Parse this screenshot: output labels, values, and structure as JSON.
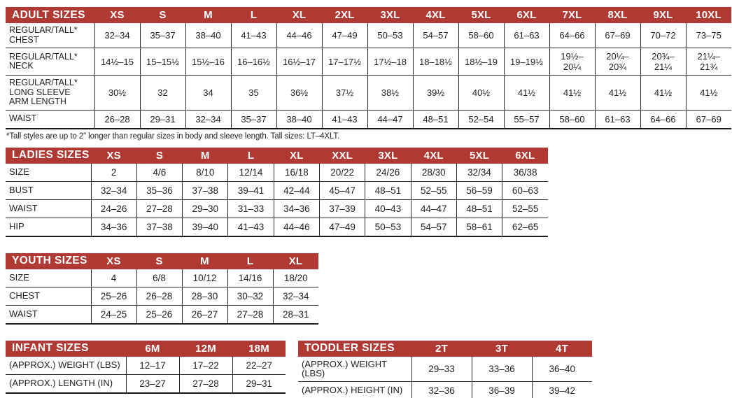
{
  "colors": {
    "header_background": "#b03a33",
    "header_text": "#ffffff",
    "body_text": "#231f20",
    "border": "#2a2a2a"
  },
  "footnote": "*Tall styles are up to 2\" longer than regular sizes in body and sleeve length. Tall sizes: LT–4XLT.",
  "tables": [
    {
      "id": "adult",
      "title": "ADULT SIZES",
      "columns": [
        "XS",
        "S",
        "M",
        "L",
        "XL",
        "2XL",
        "3XL",
        "4XL",
        "5XL",
        "6XL",
        "7XL",
        "8XL",
        "9XL",
        "10XL"
      ],
      "rows": [
        {
          "label": "REGULAR/TALL*\nCHEST",
          "values": [
            "32–34",
            "35–37",
            "38–40",
            "41–43",
            "44–46",
            "47–49",
            "50–53",
            "54–57",
            "58–60",
            "61–63",
            "64–66",
            "67–69",
            "70–72",
            "73–75"
          ]
        },
        {
          "label": "REGULAR/TALL*\nNECK",
          "values": [
            "14½–15",
            "15–15½",
            "15½–16",
            "16–16½",
            "16½–17",
            "17–17½",
            "17½–18",
            "18–18½",
            "18½–19",
            "19–19½",
            "19½–\n20¼",
            "20¼–\n20¾",
            "20¾–\n21¼",
            "21¼–\n21¾"
          ]
        },
        {
          "label": "REGULAR/TALL*\nLONG SLEEVE\nARM LENGTH",
          "values": [
            "30½",
            "32",
            "34",
            "35",
            "36½",
            "37½",
            "38½",
            "39½",
            "40½",
            "41½",
            "41½",
            "41½",
            "41½",
            "41½"
          ]
        },
        {
          "label": "WAIST",
          "values": [
            "26–28",
            "29–31",
            "32–34",
            "35–37",
            "38–40",
            "41–43",
            "44–47",
            "48–51",
            "52–54",
            "55–57",
            "58–60",
            "61–63",
            "64–66",
            "67–69"
          ]
        }
      ]
    },
    {
      "id": "ladies",
      "title": "LADIES SIZES",
      "columns": [
        "XS",
        "S",
        "M",
        "L",
        "XL",
        "XXL",
        "3XL",
        "4XL",
        "5XL",
        "6XL"
      ],
      "rows": [
        {
          "label": "SIZE",
          "values": [
            "2",
            "4/6",
            "8/10",
            "12/14",
            "16/18",
            "20/22",
            "24/26",
            "28/30",
            "32/34",
            "36/38"
          ]
        },
        {
          "label": "BUST",
          "values": [
            "32–34",
            "35–36",
            "37–38",
            "39–41",
            "42–44",
            "45–47",
            "48–51",
            "52–55",
            "56–59",
            "60–63"
          ]
        },
        {
          "label": "WAIST",
          "values": [
            "24–26",
            "27–28",
            "29–30",
            "31–33",
            "34–36",
            "37–39",
            "40–43",
            "44–47",
            "48–51",
            "52–55"
          ]
        },
        {
          "label": "HIP",
          "values": [
            "34–36",
            "37–38",
            "39–40",
            "41–43",
            "44–46",
            "47–49",
            "50–53",
            "54–57",
            "58–61",
            "62–65"
          ]
        }
      ]
    },
    {
      "id": "youth",
      "title": "YOUTH SIZES",
      "columns": [
        "XS",
        "S",
        "M",
        "L",
        "XL"
      ],
      "rows": [
        {
          "label": "SIZE",
          "values": [
            "4",
            "6/8",
            "10/12",
            "14/16",
            "18/20"
          ]
        },
        {
          "label": "CHEST",
          "values": [
            "25–26",
            "26–28",
            "28–30",
            "30–32",
            "32–34"
          ]
        },
        {
          "label": "WAIST",
          "values": [
            "24–25",
            "25–26",
            "26–27",
            "27–28",
            "28–31"
          ]
        }
      ]
    },
    {
      "id": "infant",
      "title": "INFANT SIZES",
      "columns": [
        "6M",
        "12M",
        "18M"
      ],
      "rows": [
        {
          "label": "(APPROX.) WEIGHT (LBS)",
          "values": [
            "12–17",
            "17–22",
            "22–27"
          ]
        },
        {
          "label": "(APPROX.) LENGTH (IN)",
          "values": [
            "23–27",
            "27–28",
            "29–31"
          ]
        }
      ]
    },
    {
      "id": "toddler",
      "title": "TODDLER SIZES",
      "columns": [
        "2T",
        "3T",
        "4T"
      ],
      "rows": [
        {
          "label": "(APPROX.) WEIGHT (LBS)",
          "values": [
            "29–33",
            "33–36",
            "36–40"
          ]
        },
        {
          "label": "(APPROX.) HEIGHT (IN)",
          "values": [
            "32–36",
            "36–39",
            "39–42"
          ]
        }
      ]
    }
  ]
}
